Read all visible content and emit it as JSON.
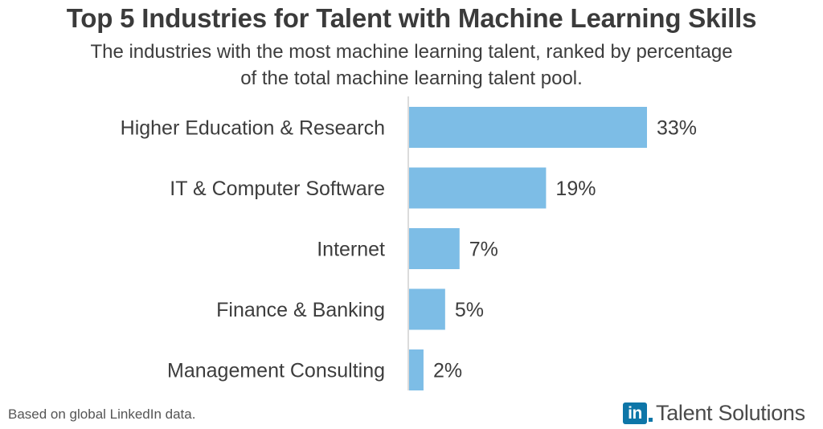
{
  "chart_data": {
    "type": "bar",
    "orientation": "horizontal",
    "title": "Top 5 Industries for Talent with Machine Learning Skills",
    "subtitle": "The industries with the most machine learning talent, ranked by percentage of the total machine learning talent pool.",
    "categories": [
      "Higher Education & Research",
      "IT & Computer Software",
      "Internet",
      "Finance & Banking",
      "Management Consulting"
    ],
    "values": [
      33,
      19,
      7,
      5,
      2
    ],
    "data_labels": [
      "33%",
      "19%",
      "7%",
      "5%",
      "2%"
    ],
    "unit": "%",
    "xlim": [
      0,
      33
    ],
    "grid": false,
    "bar_color": "#7dbde6"
  },
  "footnote": "Based on global LinkedIn data.",
  "brand": {
    "logo_text": "in",
    "name": "Talent Solutions",
    "logo_color": "#0e76a8"
  }
}
